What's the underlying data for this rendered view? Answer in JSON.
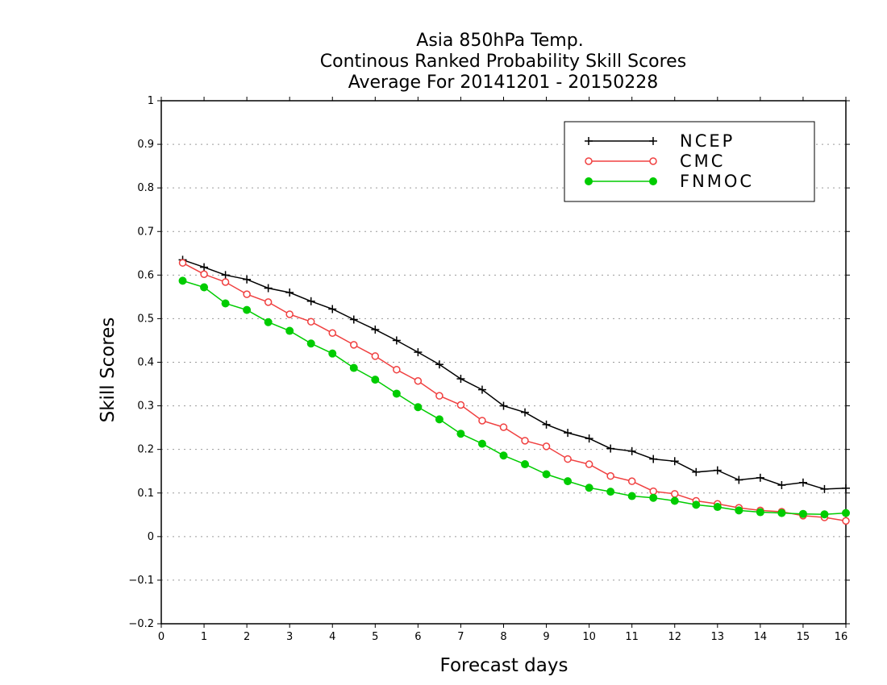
{
  "chart_data": {
    "type": "line",
    "title_lines": [
      "Asia 850hPa Temp.",
      "Continous Ranked Probability Skill Scores",
      "Average For 20141201 - 20150228"
    ],
    "xlabel": "Forecast days",
    "ylabel": "Skill Scores",
    "xlim": [
      0,
      16
    ],
    "ylim": [
      -0.2,
      1
    ],
    "x_ticks": [
      0,
      1,
      2,
      3,
      4,
      5,
      6,
      7,
      8,
      9,
      10,
      11,
      12,
      13,
      14,
      15,
      16
    ],
    "x_tick_labels": [
      "0",
      "1",
      "2",
      "3",
      "4",
      "5",
      "6",
      "7",
      "8",
      "9",
      "10",
      "11",
      "12",
      "13",
      "14",
      "15",
      "16"
    ],
    "y_ticks": [
      -0.2,
      -0.1,
      0,
      0.1,
      0.2,
      0.3,
      0.4,
      0.5,
      0.6,
      0.7,
      0.8,
      0.9,
      1
    ],
    "y_tick_labels": [
      "−0.2",
      "−0.1",
      "0",
      "0.1",
      "0.2",
      "0.3",
      "0.4",
      "0.5",
      "0.6",
      "0.7",
      "0.8",
      "0.9",
      "1"
    ],
    "grid": "horizontal-dotted",
    "legend_position": "top-right",
    "x": [
      0.5,
      1,
      1.5,
      2,
      2.5,
      3,
      3.5,
      4,
      4.5,
      5,
      5.5,
      6,
      6.5,
      7,
      7.5,
      8,
      8.5,
      9,
      9.5,
      10,
      10.5,
      11,
      11.5,
      12,
      12.5,
      13,
      13.5,
      14,
      14.5,
      15,
      15.5,
      16
    ],
    "series": [
      {
        "name": "NCEP",
        "color": "#000000",
        "marker": "plus",
        "values": [
          0.635,
          0.618,
          0.6,
          0.59,
          0.57,
          0.56,
          0.54,
          0.522,
          0.498,
          0.475,
          0.45,
          0.423,
          0.395,
          0.362,
          0.337,
          0.3,
          0.285,
          0.257,
          0.238,
          0.225,
          0.202,
          0.196,
          0.178,
          0.173,
          0.148,
          0.152,
          0.13,
          0.135,
          0.118,
          0.124,
          0.109,
          0.111
        ]
      },
      {
        "name": "CMC",
        "color": "#f04040",
        "marker": "open-circle",
        "values": [
          0.628,
          0.602,
          0.584,
          0.556,
          0.538,
          0.51,
          0.493,
          0.467,
          0.44,
          0.414,
          0.383,
          0.357,
          0.323,
          0.302,
          0.266,
          0.251,
          0.22,
          0.207,
          0.178,
          0.166,
          0.139,
          0.127,
          0.104,
          0.098,
          0.082,
          0.075,
          0.066,
          0.06,
          0.057,
          0.048,
          0.044,
          0.036
        ]
      },
      {
        "name": "FNMOC",
        "color": "#00cc00",
        "marker": "filled-circle",
        "values": [
          0.587,
          0.572,
          0.535,
          0.52,
          0.492,
          0.472,
          0.443,
          0.42,
          0.387,
          0.36,
          0.328,
          0.297,
          0.269,
          0.236,
          0.213,
          0.186,
          0.166,
          0.143,
          0.127,
          0.112,
          0.103,
          0.093,
          0.089,
          0.082,
          0.073,
          0.068,
          0.06,
          0.056,
          0.054,
          0.052,
          0.051,
          0.054
        ]
      }
    ]
  }
}
